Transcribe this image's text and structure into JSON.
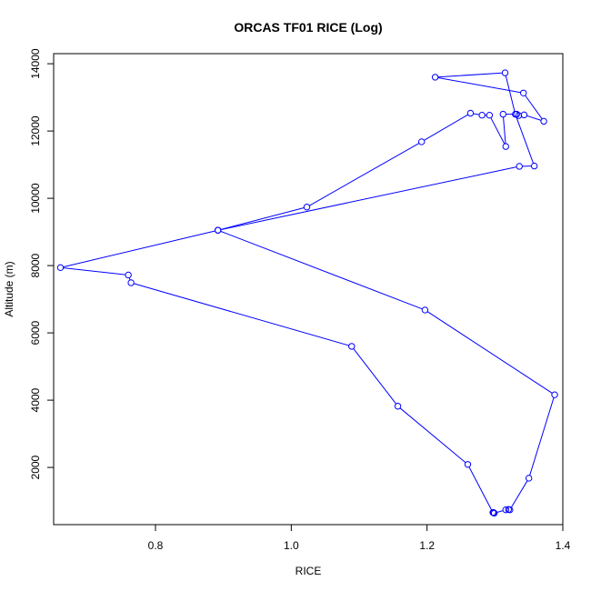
{
  "chart_data": {
    "type": "line",
    "title": "ORCAS TF01 RICE (Log)",
    "xlabel": "RICE",
    "ylabel": "Altitude (m)",
    "xlim": [
      0.65,
      1.4
    ],
    "ylim": [
      300,
      14300
    ],
    "xticks": [
      0.8,
      1.0,
      1.2,
      1.4
    ],
    "xtick_labels": [
      "0.8",
      "1.0",
      "1.2",
      "1.4"
    ],
    "yticks": [
      2000,
      4000,
      6000,
      8000,
      10000,
      12000,
      14000
    ],
    "ytick_labels": [
      "2000",
      "4000",
      "6000",
      "8000",
      "10000",
      "12000",
      "14000"
    ],
    "grid": false,
    "legend": "none",
    "line_color": "#0000ff",
    "series": [
      {
        "marker": "open-circle",
        "points": [
          {
            "x": 1.298,
            "y": 660
          },
          {
            "x": 1.299,
            "y": 640
          },
          {
            "x": 1.316,
            "y": 740
          },
          {
            "x": 1.32,
            "y": 750
          },
          {
            "x": 1.322,
            "y": 740
          },
          {
            "x": 1.35,
            "y": 1680
          },
          {
            "x": 1.388,
            "y": 4160
          },
          {
            "x": 1.197,
            "y": 6680
          },
          {
            "x": 0.892,
            "y": 9050
          },
          {
            "x": 1.023,
            "y": 9740
          },
          {
            "x": 1.192,
            "y": 11680
          },
          {
            "x": 1.264,
            "y": 12530
          },
          {
            "x": 1.281,
            "y": 12470
          },
          {
            "x": 1.292,
            "y": 12470
          },
          {
            "x": 1.316,
            "y": 11540
          },
          {
            "x": 1.312,
            "y": 12500
          },
          {
            "x": 1.332,
            "y": 12500
          },
          {
            "x": 1.335,
            "y": 12460
          },
          {
            "x": 1.343,
            "y": 12480
          },
          {
            "x": 1.372,
            "y": 12290
          },
          {
            "x": 1.342,
            "y": 13130
          },
          {
            "x": 1.212,
            "y": 13600
          },
          {
            "x": 1.315,
            "y": 13730
          },
          {
            "x": 1.33,
            "y": 12500
          },
          {
            "x": 1.358,
            "y": 10960
          },
          {
            "x": 1.336,
            "y": 10950
          },
          {
            "x": 0.892,
            "y": 9050
          },
          {
            "x": 0.66,
            "y": 7940
          },
          {
            "x": 0.76,
            "y": 7720
          },
          {
            "x": 0.764,
            "y": 7490
          },
          {
            "x": 1.089,
            "y": 5600
          },
          {
            "x": 1.157,
            "y": 3820
          },
          {
            "x": 1.26,
            "y": 2090
          },
          {
            "x": 1.297,
            "y": 660
          }
        ]
      }
    ]
  }
}
